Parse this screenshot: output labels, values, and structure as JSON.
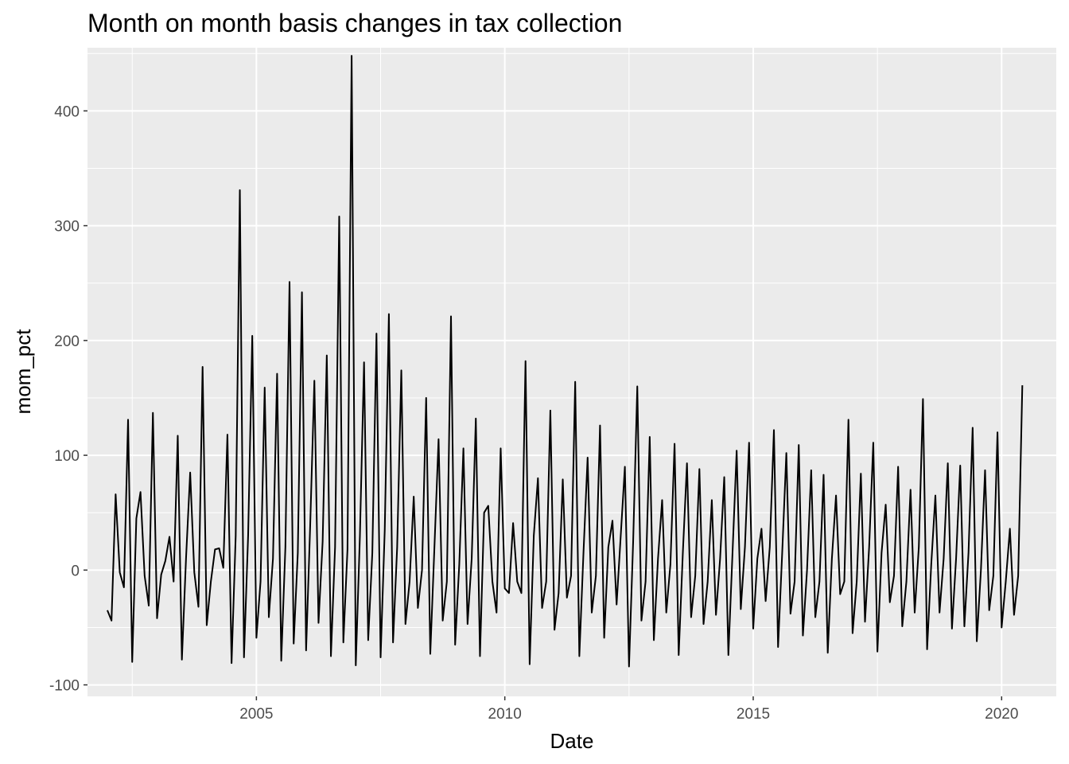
{
  "chart_data": {
    "type": "line",
    "title": "Month on month basis changes in tax collection",
    "xlabel": "Date",
    "ylabel": "mom_pct",
    "xlim": [
      2001.6,
      2021.1
    ],
    "ylim": [
      -110,
      455
    ],
    "x_ticks": [
      {
        "value": 2005,
        "label": "2005"
      },
      {
        "value": 2010,
        "label": "2010"
      },
      {
        "value": 2015,
        "label": "2015"
      },
      {
        "value": 2020,
        "label": "2020"
      }
    ],
    "y_ticks": [
      {
        "value": -100,
        "label": "-100"
      },
      {
        "value": 0,
        "label": "0"
      },
      {
        "value": 100,
        "label": "100"
      },
      {
        "value": 200,
        "label": "200"
      },
      {
        "value": 300,
        "label": "300"
      },
      {
        "value": 400,
        "label": "400"
      }
    ],
    "grid": true,
    "background": "#ebebeb",
    "grid_color": "#ffffff",
    "line_color": "#000000",
    "start_year": 2002,
    "start_month": 1,
    "series": [
      {
        "values": [
          -35,
          -44,
          66,
          -2,
          -15,
          131,
          -80,
          45,
          68,
          -5,
          -31,
          137,
          -42,
          -4,
          8,
          29,
          -10,
          117,
          -78,
          10,
          85,
          -2,
          -32,
          177,
          -48,
          -10,
          18,
          19,
          2,
          118,
          -81,
          30,
          331,
          -76,
          30,
          204,
          -59,
          -10,
          159,
          -41,
          10,
          171,
          -79,
          20,
          251,
          -64,
          15,
          242,
          -70,
          40,
          165,
          -46,
          25,
          187,
          -75,
          20,
          308,
          -63,
          18,
          448,
          -83,
          30,
          181,
          -61,
          15,
          206,
          -76,
          35,
          223,
          -63,
          20,
          174,
          -47,
          -10,
          64,
          -33,
          0,
          150,
          -73,
          20,
          114,
          -44,
          -10,
          221,
          -65,
          5,
          106,
          -47,
          10,
          132,
          -75,
          50,
          56,
          -10,
          -37,
          106,
          -16,
          -20,
          41,
          -10,
          -20,
          182,
          -82,
          30,
          80,
          -33,
          -10,
          139,
          -52,
          -20,
          79,
          -24,
          -5,
          164,
          -75,
          15,
          98,
          -37,
          -5,
          126,
          -59,
          20,
          43,
          -30,
          30,
          90,
          -84,
          25,
          160,
          -44,
          -10,
          116,
          -61,
          10,
          61,
          -37,
          5,
          110,
          -74,
          15,
          93,
          -41,
          -5,
          88,
          -47,
          -10,
          61,
          -39,
          10,
          81,
          -74,
          15,
          104,
          -34,
          20,
          111,
          -51,
          10,
          36,
          -27,
          20,
          122,
          -67,
          15,
          102,
          -38,
          -10,
          109,
          -57,
          0,
          87,
          -41,
          -10,
          83,
          -72,
          10,
          65,
          -21,
          -10,
          131,
          -55,
          -10,
          84,
          -45,
          20,
          111,
          -71,
          15,
          57,
          -28,
          -5,
          90,
          -49,
          -10,
          70,
          -37,
          20,
          149,
          -69,
          5,
          65,
          -37,
          10,
          93,
          -51,
          10,
          91,
          -49,
          15,
          124,
          -62,
          0,
          87,
          -35,
          -5,
          120,
          -50,
          -10,
          36,
          -39,
          -5,
          161
        ]
      }
    ]
  }
}
